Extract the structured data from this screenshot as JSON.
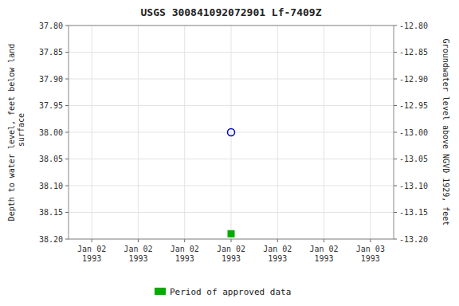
{
  "chart_data": {
    "type": "scatter",
    "title": "USGS 300841092072901 Lf-7409Z",
    "ylabel": "Depth to water level, feet below land\n surface",
    "y2label": "Groundwater level above NGVD 1929, feet",
    "categories": [
      "Jan 02\n1993",
      "Jan 02\n1993",
      "Jan 02\n1993",
      "Jan 02\n1993",
      "Jan 02\n1993",
      "Jan 02\n1993",
      "Jan 03\n1993"
    ],
    "series": [
      {
        "color": "#0000cc",
        "marker": "open-circle",
        "line_style": "none",
        "values": [
          null,
          null,
          null,
          38.0,
          null,
          null,
          null
        ]
      },
      {
        "name": "Period of approved data",
        "color": "#00aa00",
        "marker": "square",
        "line_style": "none",
        "values": [
          null,
          null,
          null,
          38.19,
          null,
          null,
          null
        ]
      }
    ],
    "ylim": [
      38.2,
      37.8
    ],
    "yticks": [
      {
        "value": 37.8,
        "label": "37.80"
      },
      {
        "value": 37.85,
        "label": "37.85"
      },
      {
        "value": 37.9,
        "label": "37.90"
      },
      {
        "value": 37.95,
        "label": "37.95"
      },
      {
        "value": 38.0,
        "label": "38.00"
      },
      {
        "value": 38.05,
        "label": "38.05"
      },
      {
        "value": 38.1,
        "label": "38.10"
      },
      {
        "value": 38.15,
        "label": "38.15"
      },
      {
        "value": 38.2,
        "label": "38.20"
      }
    ],
    "y2lim": [
      -13.2,
      -12.8
    ],
    "y2ticks": [
      {
        "value": -12.8,
        "label": "-12.80"
      },
      {
        "value": -12.85,
        "label": "-12.85"
      },
      {
        "value": -12.9,
        "label": "-12.90"
      },
      {
        "value": -12.95,
        "label": "-12.95"
      },
      {
        "value": -13.0,
        "label": "-13.00"
      },
      {
        "value": -13.05,
        "label": "-13.05"
      },
      {
        "value": -13.1,
        "label": "-13.10"
      },
      {
        "value": -13.15,
        "label": "-13.15"
      },
      {
        "value": -13.2,
        "label": "-13.20"
      }
    ],
    "grid": true,
    "legend": "bottom"
  }
}
